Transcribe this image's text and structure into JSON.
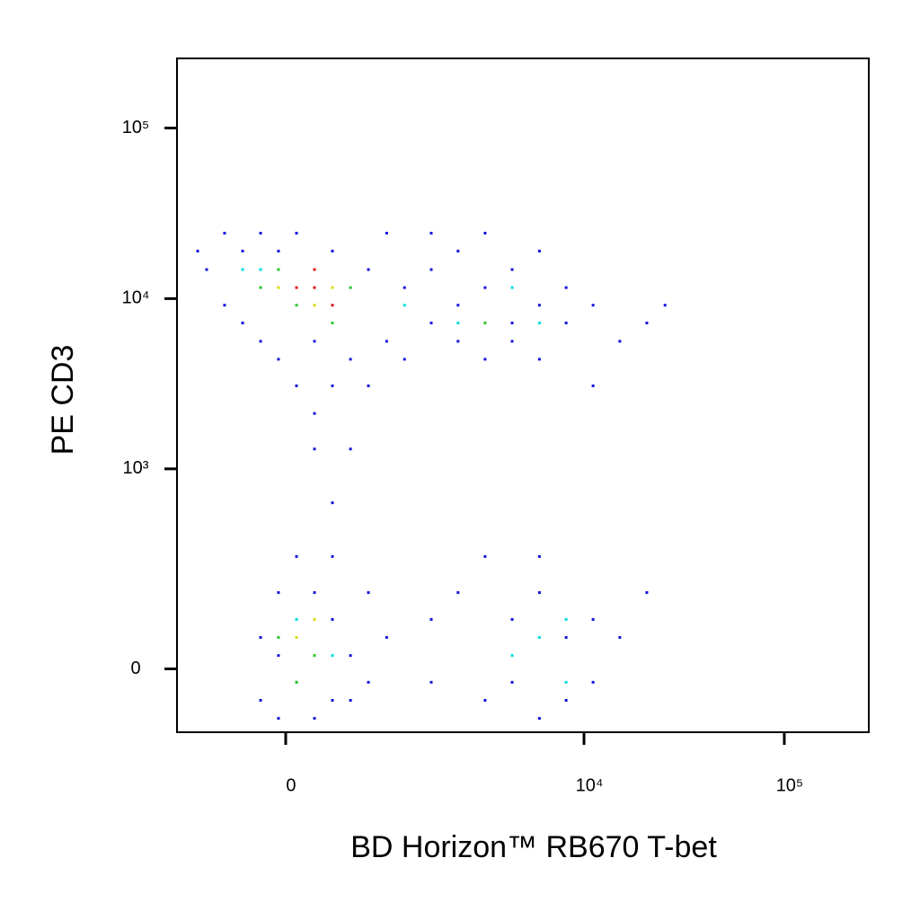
{
  "chart_data": {
    "type": "scatter",
    "x_label": "BD Horizon™ RB670  T-bet",
    "y_label": "PE  CD3",
    "xscale": "biexponential",
    "yscale": "biexponential",
    "xlim": [
      -1040,
      264000
    ],
    "ylim": [
      -130,
      256000
    ],
    "xticks": [
      0,
      {
        "value": 10000,
        "label": "10⁴"
      },
      {
        "value": 100000,
        "label": "10⁵"
      }
    ],
    "yticks": [
      0,
      {
        "value": 1000,
        "label": "10³"
      },
      {
        "value": 10000,
        "label": "10⁴"
      },
      {
        "value": 100000,
        "label": "10⁵"
      }
    ],
    "series": [
      {
        "color": "#1414dc",
        "x": [
          -775,
          -675,
          -495,
          -495,
          -335,
          -335,
          -190,
          -190,
          -54,
          -54,
          81,
          81,
          219,
          219,
          366,
          366,
          530,
          530,
          715,
          715,
          935,
          935,
          1190,
          1190,
          1670,
          1670,
          1670,
          2310,
          2310,
          2310,
          3180,
          3180,
          3180,
          4360,
          4360,
          4360,
          5980,
          5980,
          5980,
          8140,
          8140,
          11100,
          15100,
          20600,
          25400,
          366,
          219,
          11100,
          -190,
          -190,
          -54,
          -54,
          81,
          81,
          219,
          219,
          366,
          366,
          530,
          530,
          715,
          715,
          935,
          1670,
          1670,
          2310,
          3180,
          4360,
          4360,
          5980,
          5980,
          8140,
          8140,
          11100,
          11100,
          15100,
          20600,
          3180,
          5980,
          -54,
          366
        ],
        "values": [
          19000,
          14800,
          24200,
          9150,
          19000,
          7200,
          5620,
          24200,
          4410,
          19000,
          3080,
          24200,
          2120,
          5620,
          3080,
          19000,
          4410,
          1310,
          3080,
          14800,
          5620,
          24200,
          11600,
          4410,
          14800,
          7200,
          24200,
          9150,
          19000,
          5620,
          11600,
          4410,
          24200,
          7200,
          14800,
          5620,
          9150,
          4410,
          19000,
          7200,
          11600,
          9150,
          5620,
          7200,
          9150,
          628,
          1310,
          3080,
          59,
          -59,
          165,
          -97,
          293,
          -24.5,
          -97,
          165,
          97,
          -59,
          24.5,
          -59,
          165,
          -24.5,
          59,
          97,
          -24.5,
          165,
          -59,
          97,
          -24.5,
          165,
          -97,
          59,
          -59,
          97,
          -24.5,
          59,
          165,
          293,
          293,
          24.5,
          293
        ]
      },
      {
        "color": "#00dcdc",
        "x": [
          -335,
          1190,
          2310,
          4360,
          5980,
          81,
          5980,
          8140,
          4360,
          -190,
          366,
          8140
        ],
        "values": [
          14800,
          9150,
          7200,
          11600,
          7200,
          97,
          59,
          97,
          24.5,
          14800,
          24.5,
          -24.5
        ]
      },
      {
        "color": "#28c828",
        "x": [
          -190,
          -54,
          81,
          366,
          530,
          -54,
          219,
          81,
          3180
        ],
        "values": [
          11600,
          14800,
          9150,
          7200,
          11600,
          59,
          24.5,
          -24.5,
          7200
        ]
      },
      {
        "color": "#dcdc14",
        "x": [
          -54,
          219,
          366,
          81,
          219
        ],
        "values": [
          11600,
          9150,
          11600,
          59,
          97
        ]
      },
      {
        "color": "#e01818",
        "x": [
          81,
          219,
          366,
          219
        ],
        "values": [
          11600,
          11600,
          9150,
          14800
        ]
      }
    ]
  }
}
